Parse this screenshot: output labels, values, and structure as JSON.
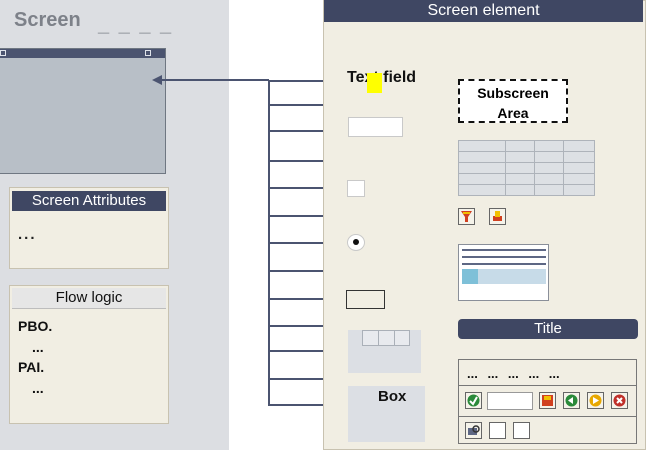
{
  "left": {
    "screen_title": "Screen",
    "screen_dashes": "_ _ _ _",
    "attributes_title": "Screen Attributes",
    "attributes_dots": "...",
    "flow_title": "Flow logic",
    "flow_lines": [
      "PBO.",
      "...",
      "PAI.",
      "..."
    ]
  },
  "right": {
    "header": "Screen element",
    "text_field_label": "Text field",
    "subscreen_label_1": "Subscreen",
    "subscreen_label_2": "Area",
    "box_label": "Box",
    "title_label": "Title",
    "toolbar_dots": "... ... ... ... ..."
  },
  "colors": {
    "dark_header": "#3f4763",
    "panel_bg": "#f1eee3",
    "gray_bg": "#dcdee2",
    "highlight": "#ffff00"
  },
  "icons": {
    "grid": "table-grid-icon",
    "funnel": "filter-icon",
    "printer": "print-icon",
    "check": "check-icon",
    "save": "save-icon",
    "back": "back-icon",
    "exit": "exit-icon",
    "cancel": "cancel-icon",
    "find": "find-icon"
  }
}
